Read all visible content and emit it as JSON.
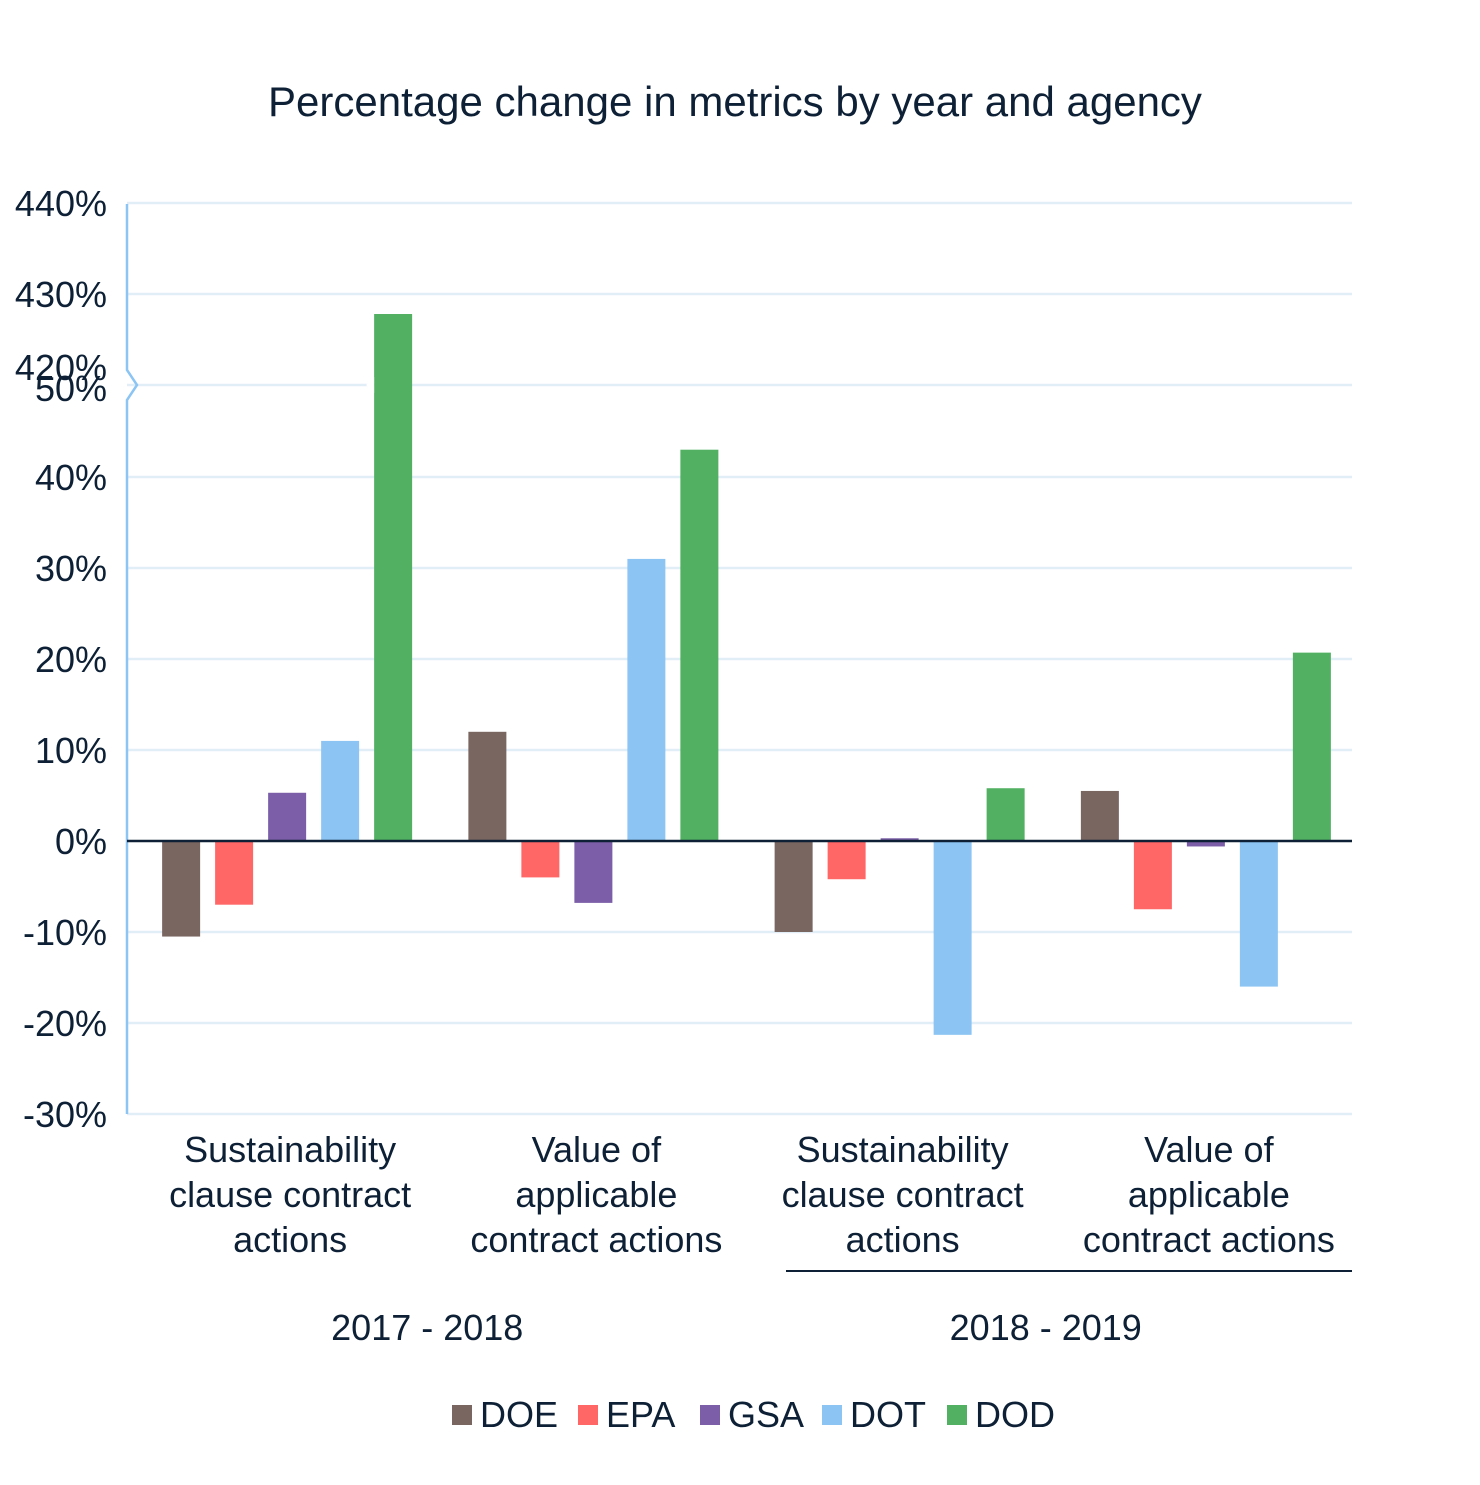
{
  "chart_data": {
    "type": "bar",
    "title": "Percentage change in metrics by year and agency",
    "xlabel": "",
    "ylabel": "",
    "grid": true,
    "legend_position": "bottom",
    "axis_break": {
      "lower_max": "50%",
      "upper_min": "420%"
    },
    "yticks": [
      "440%",
      "430%",
      "420%",
      "50%",
      "40%",
      "30%",
      "20%",
      "10%",
      "0%",
      "-10%",
      "-20%",
      "-30%"
    ],
    "ylim_lower": [
      -30,
      50
    ],
    "ylim_upper": [
      420,
      440
    ],
    "groups": [
      {
        "label": "2017 - 2018",
        "categories": [
          "Sustainability clause contract actions",
          "Value of applicable contract actions"
        ]
      },
      {
        "label": "2018 - 2019",
        "categories": [
          "Sustainability clause contract actions",
          "Value of applicable contract actions"
        ]
      }
    ],
    "categories": [
      [
        "Sustainability",
        "clause contract",
        "actions"
      ],
      [
        "Value of",
        "applicable",
        "contract actions"
      ],
      [
        "Sustainability",
        "clause contract",
        "actions"
      ],
      [
        "Value of",
        "applicable",
        "contract actions"
      ]
    ],
    "series": [
      {
        "name": "DOE",
        "color": "#7a6660",
        "values": [
          -10.5,
          12,
          -10,
          5.5
        ]
      },
      {
        "name": "EPA",
        "color": "#ff6666",
        "values": [
          -7,
          -4,
          -4.2,
          -7.5
        ]
      },
      {
        "name": "GSA",
        "color": "#7b5ea7",
        "values": [
          5.3,
          -6.8,
          0.3,
          -0.6
        ]
      },
      {
        "name": "DOT",
        "color": "#8cc5f3",
        "values": [
          11,
          31,
          -21.3,
          -16
        ]
      },
      {
        "name": "DOD",
        "color": "#51b062",
        "values": [
          427.8,
          43,
          5.8,
          20.7
        ]
      }
    ]
  },
  "colors": {
    "gridline": "#e1eef7",
    "axis_left": "#8cc5f3",
    "zero_line": "#0d2035",
    "text": "#0d2035"
  }
}
